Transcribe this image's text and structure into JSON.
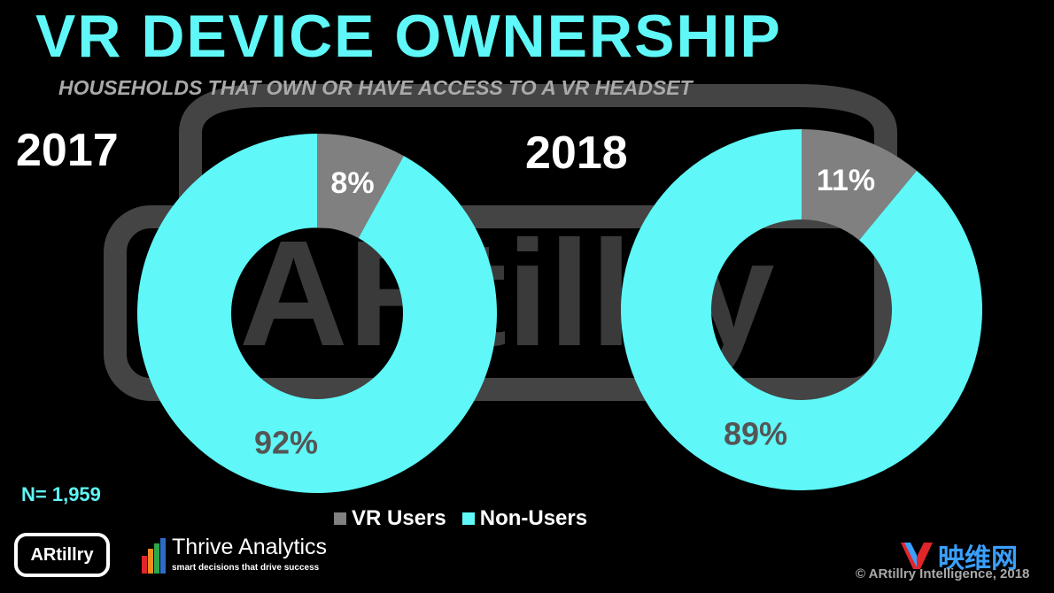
{
  "header": {
    "title": "VR DEVICE OWNERSHIP",
    "subtitle": "HOUSEHOLDS THAT OWN OR HAVE ACCESS TO A VR HEADSET"
  },
  "colors": {
    "accent": "#5ff7f7",
    "vr_users": "#808080",
    "non_users": "#5ff7f7"
  },
  "chart_data": [
    {
      "type": "pie",
      "title": "2017",
      "categories": [
        "VR Users",
        "Non-Users"
      ],
      "values": [
        8,
        92
      ],
      "labels": [
        "8%",
        "92%"
      ]
    },
    {
      "type": "pie",
      "title": "2018",
      "categories": [
        "VR Users",
        "Non-Users"
      ],
      "values": [
        11,
        89
      ],
      "labels": [
        "11%",
        "89%"
      ]
    }
  ],
  "legend": {
    "items": [
      "VR Users",
      "Non-Users"
    ]
  },
  "footer": {
    "n_label": "N= 1,959",
    "artillry_logo": "ARtillry",
    "thrive_name": "Thrive Analytics",
    "thrive_tagline": "smart decisions that drive success",
    "yw_text": "映维网",
    "copyright": "© ARtillry Intelligence, 2018"
  },
  "watermark": "ARtillry"
}
